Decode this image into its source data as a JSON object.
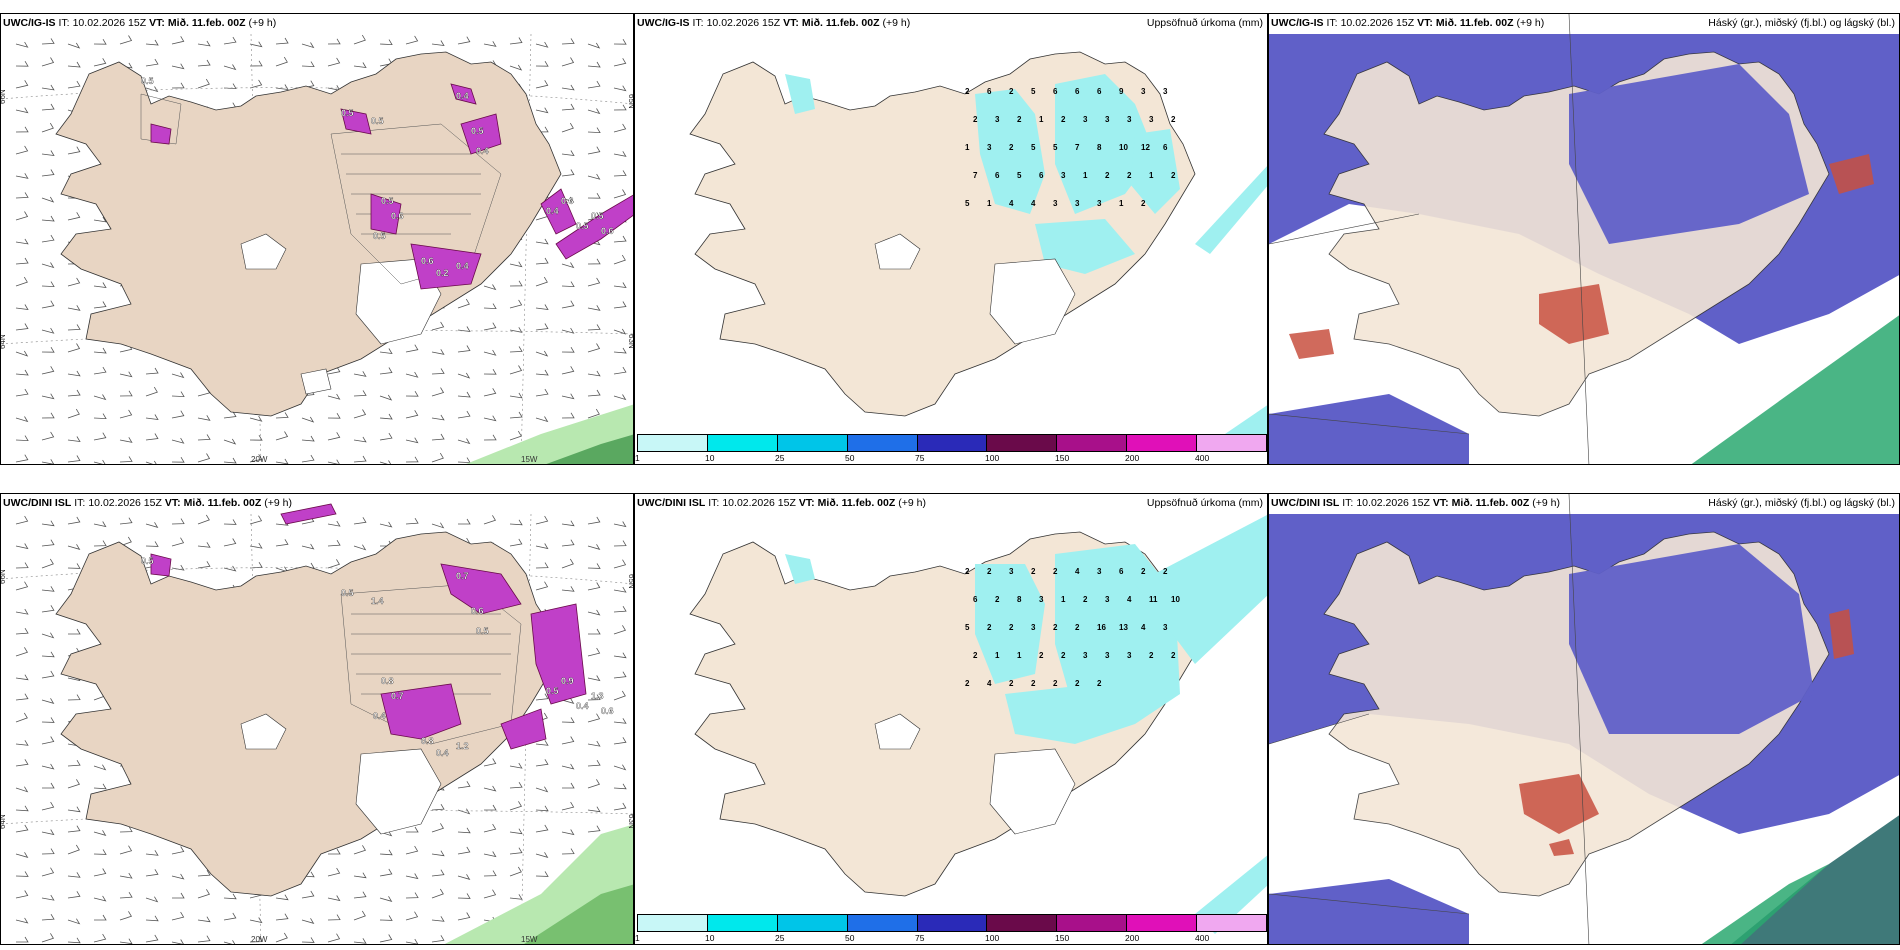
{
  "rows": [
    {
      "model": "UWC/IG-IS",
      "it_label": "IT:",
      "it_value": "10.02.2026 15Z",
      "vt_label": "VT:",
      "vt_value": "Mið. 11.feb. 00Z",
      "lead": "(+9 h)",
      "precip_title": "Uppsöfnuð úrkoma (mm)",
      "cloud_title": "Háský (gr.), miðský (fj.bl.) og lágský (bl.)",
      "left_values": [
        "0.5",
        "0.5",
        "0.5",
        "0.4",
        "0.5",
        "0.4",
        "0.5",
        "0.6",
        "0.5",
        "0.6",
        "0.2",
        "0.4",
        "0.4",
        "0.6",
        "0.5",
        "0.5",
        "0.6"
      ],
      "grid_labels": [
        "66N",
        "65N",
        "64N",
        "63N",
        "20W",
        "15W"
      ],
      "precip_values": [
        "2",
        "6",
        "2",
        "5",
        "6",
        "6",
        "6",
        "9",
        "3",
        "3",
        "2",
        "3",
        "2",
        "1",
        "2",
        "3",
        "3",
        "3",
        "3",
        "2",
        "1",
        "3",
        "2",
        "5",
        "5",
        "7",
        "8",
        "10",
        "12",
        "6",
        "7",
        "6",
        "5",
        "6",
        "3",
        "1",
        "2",
        "2",
        "1",
        "2",
        "5",
        "1",
        "4",
        "4",
        "3",
        "3",
        "3",
        "1",
        "2"
      ]
    },
    {
      "model": "UWC/DINI ISL",
      "it_label": "IT:",
      "it_value": "10.02.2026 15Z",
      "vt_label": "VT:",
      "vt_value": "Mið. 11.feb. 00Z",
      "lead": "(+9 h)",
      "precip_title": "Uppsöfnuð úrkoma (mm)",
      "cloud_title": "Háský (gr.), miðský (fj.bl.) og lágský (bl.)",
      "left_values": [
        "0.5",
        "0.5",
        "1.4",
        "0.7",
        "0.6",
        "0.5",
        "0.8",
        "0.7",
        "0.4",
        "0.8",
        "0.4",
        "1.2",
        "0.5",
        "0.9",
        "0.4",
        "1.3",
        "0.6"
      ],
      "grid_labels": [
        "66N",
        "65N",
        "64N",
        "63N",
        "20W",
        "15W"
      ],
      "precip_values": [
        "2",
        "2",
        "3",
        "2",
        "2",
        "4",
        "3",
        "6",
        "2",
        "2",
        "6",
        "2",
        "8",
        "3",
        "1",
        "2",
        "3",
        "4",
        "11",
        "10",
        "5",
        "2",
        "2",
        "3",
        "2",
        "2",
        "16",
        "13",
        "4",
        "3",
        "2",
        "1",
        "1",
        "2",
        "2",
        "3",
        "3",
        "3",
        "2",
        "2",
        "2",
        "4",
        "2",
        "2",
        "2",
        "2",
        "2"
      ]
    }
  ],
  "colorbar": {
    "ticks": [
      "1",
      "10",
      "25",
      "50",
      "75",
      "100",
      "150",
      "200",
      "400"
    ],
    "colors": [
      "#c8f7f7",
      "#00e8ec",
      "#00c5e8",
      "#1f6fe8",
      "#2a2ab8",
      "#6a0a4a",
      "#a8108a",
      "#e010b8",
      "#f0a8f0"
    ]
  },
  "palette": {
    "land": "#f3e6d6",
    "land_left": "#e8d5c3",
    "precip": "#9ff0f0",
    "cloud_high": "#6060c8",
    "purple_precip": "#c040c8"
  }
}
